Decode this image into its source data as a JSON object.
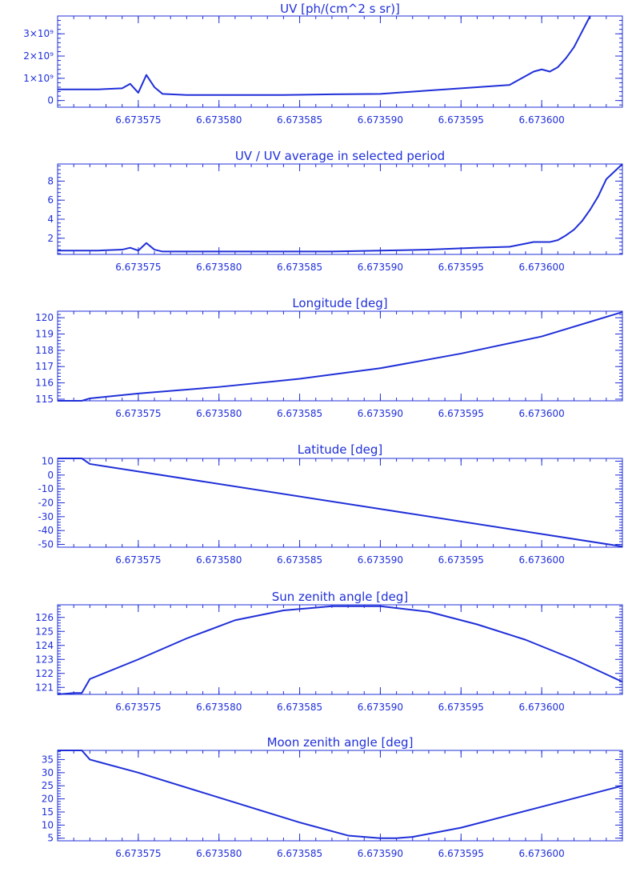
{
  "colors": {
    "ink": "#1f2fd8",
    "background": "#ffffff"
  },
  "chart_data": [
    {
      "type": "line",
      "title": "UV [ph/(cm^2 s sr)]",
      "xlabel": "",
      "ylabel": "",
      "xlim": [
        6.67357,
        6.673605
      ],
      "ylim": [
        -300000000,
        3800000000
      ],
      "xticks": [
        6.673575,
        6.67358,
        6.673585,
        6.67359,
        6.673595,
        6.6736
      ],
      "xtick_labels": [
        "6.673575",
        "6.673580",
        "6.673585",
        "6.673590",
        "6.673595",
        "6.673600"
      ],
      "yticks": [
        0,
        1000000000,
        2000000000,
        3000000000
      ],
      "ytick_labels": [
        "0",
        "1×10⁹",
        "2×10⁹",
        "3×10⁹"
      ],
      "series": [
        {
          "x": [
            6.67357,
            6.6735725,
            6.673574,
            6.6735745,
            6.673575,
            6.6735755,
            6.673576,
            6.6735765,
            6.673578,
            6.673581,
            6.673584,
            6.673587,
            6.67359,
            6.673593,
            6.673596,
            6.673598,
            6.6735995,
            6.6736,
            6.6736005,
            6.673601,
            6.6736015,
            6.673602,
            6.6736025,
            6.673603
          ],
          "y": [
            500000000,
            500000000,
            550000000,
            750000000,
            350000000,
            1150000000,
            600000000,
            300000000,
            250000000,
            250000000,
            250000000,
            280000000,
            300000000,
            450000000,
            600000000,
            700000000,
            1300000000,
            1400000000,
            1300000000,
            1500000000,
            1900000000,
            2400000000,
            3100000000,
            3800000000
          ]
        }
      ]
    },
    {
      "type": "line",
      "title": "UV / UV average in selected period",
      "xlabel": "",
      "ylabel": "",
      "xlim": [
        6.67357,
        6.673605
      ],
      "ylim": [
        0.3,
        9.8
      ],
      "xticks": [
        6.673575,
        6.67358,
        6.673585,
        6.67359,
        6.673595,
        6.6736
      ],
      "xtick_labels": [
        "6.673575",
        "6.673580",
        "6.673585",
        "6.673590",
        "6.673595",
        "6.673600"
      ],
      "yticks": [
        2,
        4,
        6,
        8
      ],
      "ytick_labels": [
        "2",
        "4",
        "6",
        "8"
      ],
      "series": [
        {
          "x": [
            6.67357,
            6.6735725,
            6.673574,
            6.6735745,
            6.673575,
            6.6735755,
            6.673576,
            6.6735765,
            6.673578,
            6.673581,
            6.673584,
            6.673587,
            6.67359,
            6.673593,
            6.673596,
            6.673598,
            6.6735995,
            6.6736,
            6.6736005,
            6.673601,
            6.6736015,
            6.673602,
            6.6736025,
            6.673603,
            6.6736035,
            6.673604,
            6.673605
          ],
          "y": [
            0.7,
            0.7,
            0.8,
            1.0,
            0.7,
            1.5,
            0.8,
            0.6,
            0.6,
            0.6,
            0.6,
            0.6,
            0.7,
            0.8,
            1.0,
            1.1,
            1.6,
            1.6,
            1.6,
            1.8,
            2.3,
            2.9,
            3.8,
            5.0,
            6.4,
            8.2,
            9.8
          ]
        }
      ]
    },
    {
      "type": "line",
      "title": "Longitude [deg]",
      "xlabel": "",
      "ylabel": "",
      "xlim": [
        6.67357,
        6.673605
      ],
      "ylim": [
        114.9,
        120.4
      ],
      "xticks": [
        6.673575,
        6.67358,
        6.673585,
        6.67359,
        6.673595,
        6.6736
      ],
      "xtick_labels": [
        "6.673575",
        "6.673580",
        "6.673585",
        "6.673590",
        "6.673595",
        "6.673600"
      ],
      "yticks": [
        115,
        116,
        117,
        118,
        119,
        120
      ],
      "ytick_labels": [
        "115",
        "116",
        "117",
        "118",
        "119",
        "120"
      ],
      "series": [
        {
          "x": [
            6.67357,
            6.6735715,
            6.673572,
            6.673575,
            6.67358,
            6.673585,
            6.67359,
            6.673595,
            6.6736,
            6.673605
          ],
          "y": [
            114.9,
            114.9,
            115.05,
            115.35,
            115.75,
            116.25,
            116.9,
            117.8,
            118.85,
            120.35
          ]
        }
      ]
    },
    {
      "type": "line",
      "title": "Latitude [deg]",
      "xlabel": "",
      "ylabel": "",
      "xlim": [
        6.67357,
        6.673605
      ],
      "ylim": [
        -52,
        12
      ],
      "xticks": [
        6.673575,
        6.67358,
        6.673585,
        6.67359,
        6.673595,
        6.6736
      ],
      "xtick_labels": [
        "6.673575",
        "6.673580",
        "6.673585",
        "6.673590",
        "6.673595",
        "6.673600"
      ],
      "yticks": [
        -50,
        -40,
        -30,
        -20,
        -10,
        0,
        10
      ],
      "ytick_labels": [
        "-50",
        "-40",
        "-30",
        "-20",
        "-10",
        "0",
        "10"
      ],
      "series": [
        {
          "x": [
            6.67357,
            6.6735715,
            6.673572,
            6.673605
          ],
          "y": [
            12,
            12,
            8,
            -51.5
          ]
        }
      ]
    },
    {
      "type": "line",
      "title": "Sun zenith angle [deg]",
      "xlabel": "",
      "ylabel": "",
      "xlim": [
        6.67357,
        6.673605
      ],
      "ylim": [
        120.5,
        126.9
      ],
      "xticks": [
        6.673575,
        6.67358,
        6.673585,
        6.67359,
        6.673595,
        6.6736
      ],
      "xtick_labels": [
        "6.673575",
        "6.673580",
        "6.673585",
        "6.673590",
        "6.673595",
        "6.673600"
      ],
      "yticks": [
        121,
        122,
        123,
        124,
        125,
        126
      ],
      "ytick_labels": [
        "121",
        "122",
        "123",
        "124",
        "125",
        "126"
      ],
      "series": [
        {
          "x": [
            6.67357,
            6.673571,
            6.6735715,
            6.673572,
            6.673575,
            6.673578,
            6.673581,
            6.673584,
            6.673587,
            6.67359,
            6.673593,
            6.673596,
            6.673599,
            6.673602,
            6.673605
          ],
          "y": [
            120.5,
            120.6,
            120.6,
            121.6,
            123.0,
            124.5,
            125.8,
            126.5,
            126.8,
            126.8,
            126.4,
            125.5,
            124.4,
            123.0,
            121.4
          ]
        }
      ]
    },
    {
      "type": "line",
      "title": "Moon zenith angle [deg]",
      "xlabel": "",
      "ylabel": "",
      "xlim": [
        6.67357,
        6.673605
      ],
      "ylim": [
        4,
        38.5
      ],
      "xticks": [
        6.673575,
        6.67358,
        6.673585,
        6.67359,
        6.673595,
        6.6736
      ],
      "xtick_labels": [
        "6.673575",
        "6.673580",
        "6.673585",
        "6.673590",
        "6.673595",
        "6.673600"
      ],
      "yticks": [
        5,
        10,
        15,
        20,
        25,
        30,
        35
      ],
      "ytick_labels": [
        "5",
        "10",
        "15",
        "20",
        "25",
        "30",
        "35"
      ],
      "series": [
        {
          "x": [
            6.67357,
            6.6735715,
            6.673572,
            6.673575,
            6.67358,
            6.673585,
            6.673588,
            6.67359,
            6.673591,
            6.673592,
            6.673595,
            6.6736,
            6.673605
          ],
          "y": [
            38.5,
            38.5,
            35,
            30,
            20.5,
            11,
            6,
            5,
            5,
            5.5,
            9,
            17,
            25
          ]
        }
      ]
    }
  ]
}
